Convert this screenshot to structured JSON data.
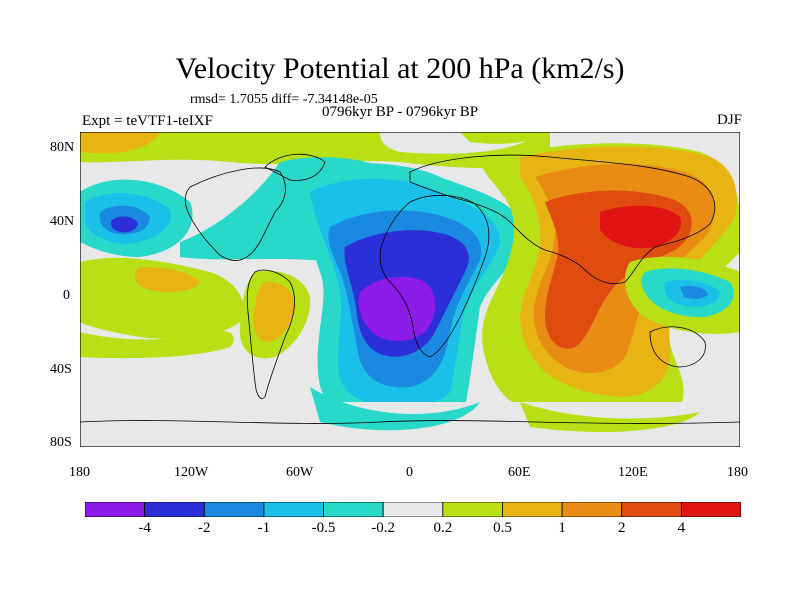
{
  "title": "Velocity Potential at 200 hPa (km2/s)",
  "stats": "rmsd= 1.7055 diff= -7.34148e-05",
  "period": "0796kyr BP - 0796kyr BP",
  "experiment": "Expt = teVTF1-teIXF",
  "season": "DJF",
  "lat_ticks": [
    "80N",
    "40N",
    "0",
    "40S",
    "80S"
  ],
  "lon_ticks": [
    "180",
    "120W",
    "60W",
    "0",
    "60E",
    "120E",
    "180"
  ],
  "colorbar": {
    "colors": [
      "#8c1be8",
      "#2b2fd8",
      "#1a8ae0",
      "#1ac0e8",
      "#28d8c8",
      "#e8e8e8",
      "#b8e014",
      "#e8b414",
      "#e88c14",
      "#e04c10",
      "#e01414"
    ],
    "labels": [
      "-4",
      "-2",
      "-1",
      "-0.5",
      "-0.2",
      "0.2",
      "0.5",
      "1",
      "2",
      "4"
    ]
  }
}
